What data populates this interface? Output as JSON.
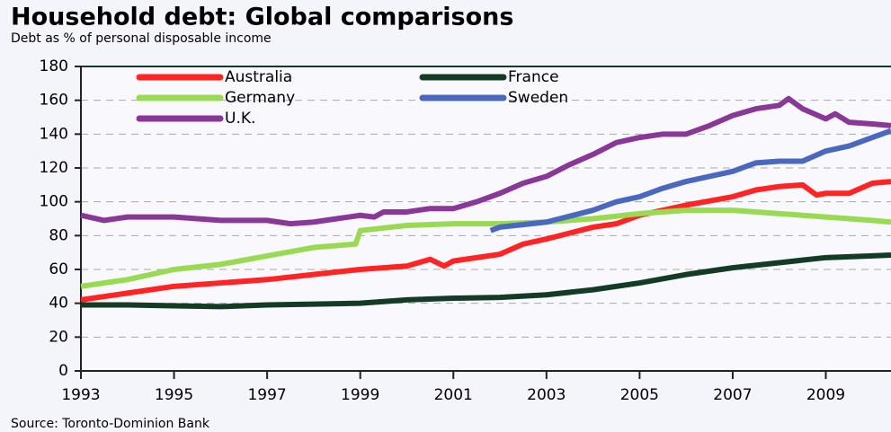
{
  "chart_data": {
    "type": "line",
    "title": "Household debt: Global comparisons",
    "subtitle": "Debt as % of personal disposable income",
    "source": "Source: Toronto-Dominion Bank",
    "xlim": [
      1993,
      2010.4
    ],
    "xticks": [
      1993,
      1995,
      1997,
      1999,
      2001,
      2003,
      2005,
      2007,
      2009
    ],
    "ylim": [
      0,
      180
    ],
    "yticks": [
      0,
      20,
      40,
      60,
      80,
      100,
      120,
      140,
      160,
      180
    ],
    "grid": true,
    "series": [
      {
        "name": "Australia",
        "color": "#ff2424",
        "x": [
          1993,
          1994,
          1995,
          1996,
          1997,
          1998,
          1999,
          2000,
          2000.5,
          2000.8,
          2001,
          2002,
          2002.5,
          2003,
          2004,
          2004.5,
          2005,
          2006,
          2007,
          2007.5,
          2008,
          2008.5,
          2008.8,
          2009,
          2009.5,
          2010,
          2010.4
        ],
        "values": [
          42,
          46,
          50,
          52,
          54,
          57,
          60,
          62,
          66,
          62,
          65,
          69,
          75,
          78,
          85,
          87,
          92,
          98,
          103,
          107,
          109,
          110,
          104,
          105,
          105,
          111,
          112
        ]
      },
      {
        "name": "France",
        "color": "#143c24",
        "x": [
          1993,
          1994,
          1995,
          1996,
          1997,
          1998,
          1999,
          2000,
          2001,
          2002,
          2003,
          2004,
          2005,
          2006,
          2007,
          2008,
          2009,
          2010,
          2010.4
        ],
        "values": [
          39,
          39,
          38.5,
          38,
          39,
          39.5,
          40,
          42,
          43,
          43.5,
          45,
          48,
          52,
          57,
          61,
          64,
          67,
          68,
          68.5
        ]
      },
      {
        "name": "Germany",
        "color": "#9ada52",
        "x": [
          1993,
          1994,
          1995,
          1996,
          1997,
          1998,
          1998.9,
          1999,
          2000,
          2001,
          2002,
          2003,
          2004,
          2005,
          2006,
          2007,
          2008,
          2009,
          2010,
          2010.4
        ],
        "values": [
          50,
          54,
          60,
          63,
          68,
          73,
          75,
          83,
          86,
          87,
          87,
          88,
          90,
          93,
          95,
          95,
          93,
          91,
          89,
          88
        ]
      },
      {
        "name": "Sweden",
        "color": "#4a68c0",
        "x": [
          2001.8,
          2002,
          2003,
          2004,
          2004.5,
          2005,
          2005.5,
          2006,
          2007,
          2007.5,
          2008,
          2008.5,
          2009,
          2009.5,
          2010,
          2010.4
        ],
        "values": [
          83,
          85,
          88,
          95,
          100,
          103,
          108,
          112,
          118,
          123,
          124,
          124,
          130,
          133,
          138,
          142
        ]
      },
      {
        "name": "U.K.",
        "color": "#8a3898",
        "x": [
          1993,
          1993.5,
          1994,
          1995,
          1996,
          1997,
          1997.5,
          1998,
          1999,
          1999.3,
          1999.5,
          2000,
          2000.5,
          2001,
          2001.5,
          2002,
          2002.5,
          2003,
          2003.5,
          2004,
          2004.5,
          2005,
          2005.5,
          2006,
          2006.5,
          2007,
          2007.5,
          2008,
          2008.2,
          2008.5,
          2009,
          2009.2,
          2009.5,
          2010,
          2010.4
        ],
        "values": [
          92,
          89,
          91,
          91,
          89,
          89,
          87,
          88,
          92,
          91,
          94,
          94,
          96,
          96,
          100,
          105,
          111,
          115,
          122,
          128,
          135,
          138,
          140,
          140,
          145,
          151,
          155,
          157,
          161,
          155,
          149,
          152,
          147,
          146,
          145
        ]
      }
    ]
  }
}
